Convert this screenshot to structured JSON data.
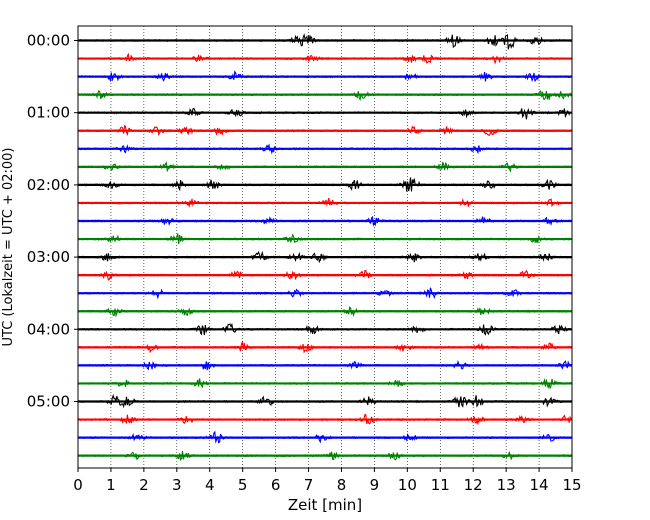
{
  "chart_data": {
    "type": "line",
    "title": "",
    "xlabel": "Zeit  [min]",
    "ylabel": "UTC (Lokalzeit = UTC + 02:00)",
    "xlim": [
      0,
      15
    ],
    "x_ticks": [
      0,
      1,
      2,
      3,
      4,
      5,
      6,
      7,
      8,
      9,
      10,
      11,
      12,
      13,
      14,
      15
    ],
    "x_tick_labels": [
      "0",
      "1",
      "2",
      "3",
      "4",
      "5",
      "6",
      "7",
      "8",
      "9",
      "10",
      "11",
      "12",
      "13",
      "14",
      "15"
    ],
    "y_tick_labels": [
      "00:00",
      "01:00",
      "02:00",
      "03:00",
      "04:00",
      "05:00"
    ],
    "minutes_per_trace": 15,
    "grid": "vertical dotted lines at each minute",
    "legend": "none",
    "trace_colors": [
      "#000000",
      "#ff0000",
      "#0000ff",
      "#008000"
    ],
    "series": [
      {
        "start": "00:00",
        "color": "#000000",
        "bursts": [
          [
            6.7,
            0.8
          ],
          [
            7.0,
            0.7
          ],
          [
            11.4,
            0.9
          ],
          [
            12.6,
            0.8
          ],
          [
            13.1,
            1.2
          ],
          [
            13.9,
            0.6
          ]
        ]
      },
      {
        "start": "00:15",
        "color": "#ff0000",
        "bursts": [
          [
            1.5,
            0.6
          ],
          [
            3.7,
            0.5
          ],
          [
            7.1,
            0.5
          ],
          [
            10.1,
            0.5
          ],
          [
            10.6,
            0.6
          ],
          [
            12.7,
            0.6
          ]
        ]
      },
      {
        "start": "00:30",
        "color": "#0000ff",
        "bursts": [
          [
            1.1,
            0.7
          ],
          [
            2.6,
            0.5
          ],
          [
            4.8,
            0.7
          ],
          [
            10.1,
            0.5
          ],
          [
            12.4,
            0.6
          ],
          [
            13.8,
            0.6
          ]
        ]
      },
      {
        "start": "00:45",
        "color": "#008000",
        "bursts": [
          [
            0.7,
            0.5
          ],
          [
            8.6,
            0.6
          ],
          [
            14.2,
            0.9
          ],
          [
            14.7,
            0.5
          ]
        ]
      },
      {
        "start": "01:00",
        "color": "#000000",
        "bursts": [
          [
            3.5,
            0.5
          ],
          [
            4.8,
            0.6
          ],
          [
            11.8,
            0.5
          ],
          [
            13.6,
            0.9
          ],
          [
            14.8,
            0.6
          ]
        ]
      },
      {
        "start": "01:15",
        "color": "#ff0000",
        "bursts": [
          [
            1.4,
            0.6
          ],
          [
            2.4,
            0.5
          ],
          [
            3.3,
            0.5
          ],
          [
            4.3,
            0.5
          ],
          [
            10.2,
            0.5
          ],
          [
            11.2,
            0.5
          ],
          [
            12.5,
            0.6
          ]
        ]
      },
      {
        "start": "01:30",
        "color": "#0000ff",
        "bursts": [
          [
            1.4,
            0.5
          ],
          [
            5.8,
            0.6
          ],
          [
            12.1,
            0.5
          ]
        ]
      },
      {
        "start": "01:45",
        "color": "#008000",
        "bursts": [
          [
            1.0,
            0.5
          ],
          [
            2.7,
            0.5
          ],
          [
            4.4,
            0.5
          ],
          [
            11.1,
            0.6
          ],
          [
            13.1,
            0.5
          ]
        ]
      },
      {
        "start": "02:00",
        "color": "#000000",
        "bursts": [
          [
            1.0,
            0.5
          ],
          [
            3.1,
            0.6
          ],
          [
            4.1,
            0.7
          ],
          [
            8.4,
            0.8
          ],
          [
            10.0,
            0.8
          ],
          [
            10.2,
            0.6
          ],
          [
            12.5,
            0.6
          ],
          [
            14.3,
            0.6
          ]
        ]
      },
      {
        "start": "02:15",
        "color": "#ff0000",
        "bursts": [
          [
            3.4,
            0.6
          ],
          [
            7.6,
            0.6
          ],
          [
            11.8,
            0.5
          ],
          [
            14.4,
            0.5
          ]
        ]
      },
      {
        "start": "02:30",
        "color": "#0000ff",
        "bursts": [
          [
            2.7,
            0.5
          ],
          [
            5.8,
            0.5
          ],
          [
            9.0,
            0.6
          ],
          [
            12.3,
            0.5
          ],
          [
            14.3,
            0.5
          ]
        ]
      },
      {
        "start": "02:45",
        "color": "#008000",
        "bursts": [
          [
            1.1,
            0.5
          ],
          [
            3.0,
            0.7
          ],
          [
            6.5,
            0.5
          ],
          [
            13.9,
            0.5
          ]
        ]
      },
      {
        "start": "03:00",
        "color": "#000000",
        "bursts": [
          [
            0.9,
            0.6
          ],
          [
            5.5,
            0.8
          ],
          [
            6.6,
            0.6
          ],
          [
            7.3,
            0.7
          ],
          [
            10.2,
            0.7
          ],
          [
            12.2,
            0.6
          ],
          [
            14.2,
            0.6
          ]
        ]
      },
      {
        "start": "03:15",
        "color": "#ff0000",
        "bursts": [
          [
            0.9,
            0.6
          ],
          [
            4.8,
            0.5
          ],
          [
            6.5,
            0.6
          ],
          [
            8.7,
            0.6
          ],
          [
            11.8,
            0.5
          ],
          [
            13.6,
            0.6
          ]
        ]
      },
      {
        "start": "03:30",
        "color": "#0000ff",
        "bursts": [
          [
            2.4,
            0.6
          ],
          [
            6.6,
            0.6
          ],
          [
            9.3,
            0.5
          ],
          [
            10.7,
            0.8
          ],
          [
            13.2,
            0.7
          ]
        ]
      },
      {
        "start": "03:45",
        "color": "#008000",
        "bursts": [
          [
            1.1,
            0.6
          ],
          [
            3.3,
            0.6
          ],
          [
            8.3,
            0.5
          ],
          [
            12.3,
            0.5
          ]
        ]
      },
      {
        "start": "04:00",
        "color": "#000000",
        "bursts": [
          [
            3.8,
            0.8
          ],
          [
            4.6,
            0.7
          ],
          [
            7.1,
            0.6
          ],
          [
            10.3,
            0.6
          ],
          [
            12.4,
            0.7
          ],
          [
            14.6,
            0.6
          ]
        ]
      },
      {
        "start": "04:15",
        "color": "#ff0000",
        "bursts": [
          [
            2.2,
            0.6
          ],
          [
            5.0,
            0.7
          ],
          [
            6.9,
            0.6
          ],
          [
            9.9,
            0.6
          ],
          [
            12.2,
            0.5
          ],
          [
            14.3,
            0.6
          ]
        ]
      },
      {
        "start": "04:30",
        "color": "#0000ff",
        "bursts": [
          [
            2.2,
            0.5
          ],
          [
            3.9,
            0.6
          ],
          [
            8.4,
            0.5
          ],
          [
            11.6,
            0.5
          ],
          [
            14.8,
            0.5
          ]
        ]
      },
      {
        "start": "04:45",
        "color": "#008000",
        "bursts": [
          [
            1.4,
            0.6
          ],
          [
            3.7,
            0.6
          ],
          [
            9.7,
            0.5
          ],
          [
            14.3,
            0.7
          ]
        ]
      },
      {
        "start": "05:00",
        "color": "#000000",
        "bursts": [
          [
            1.1,
            0.9
          ],
          [
            1.5,
            0.8
          ],
          [
            5.7,
            0.9
          ],
          [
            8.8,
            0.6
          ],
          [
            11.6,
            0.9
          ],
          [
            12.1,
            0.8
          ],
          [
            14.3,
            0.6
          ]
        ]
      },
      {
        "start": "05:15",
        "color": "#ff0000",
        "bursts": [
          [
            1.5,
            0.7
          ],
          [
            3.3,
            0.6
          ],
          [
            8.8,
            0.8
          ],
          [
            12.1,
            0.6
          ],
          [
            13.5,
            0.5
          ],
          [
            14.8,
            0.5
          ]
        ]
      },
      {
        "start": "05:30",
        "color": "#0000ff",
        "bursts": [
          [
            1.8,
            0.5
          ],
          [
            4.2,
            0.8
          ],
          [
            7.4,
            0.6
          ],
          [
            10.1,
            0.5
          ],
          [
            14.3,
            0.5
          ]
        ]
      },
      {
        "start": "05:45",
        "color": "#008000",
        "bursts": [
          [
            1.7,
            0.5
          ],
          [
            3.2,
            0.6
          ],
          [
            7.7,
            0.5
          ],
          [
            9.6,
            0.5
          ],
          [
            13.1,
            0.5
          ]
        ]
      }
    ]
  }
}
